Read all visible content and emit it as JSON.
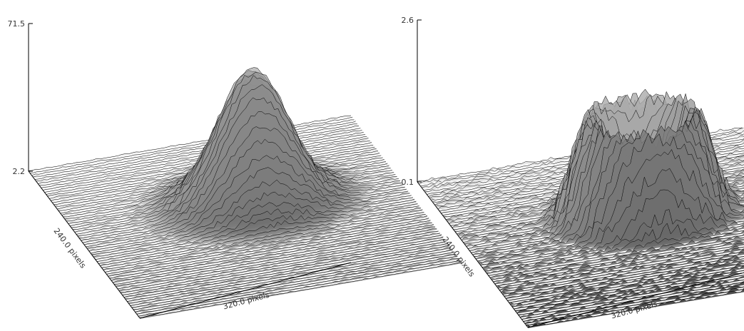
{
  "chart_data": [
    {
      "type": "surface",
      "zlim": [
        2.2,
        71.5
      ],
      "z_top_label": "71.5",
      "z_bottom_label": "2.2",
      "x_axis_label": "320.0 pixels",
      "y_axis_label": "240.0 pixels",
      "shape": "single broad peak",
      "peak_center": [
        0.55,
        0.42
      ],
      "peak_value": 62.0,
      "noise": 3.0
    },
    {
      "type": "surface",
      "zlim": [
        0.1,
        2.6
      ],
      "z_top_label": "2.6",
      "z_bottom_label": "0.1",
      "x_axis_label": "320.0 pixels",
      "y_axis_label": "240.0 pixels",
      "shape": "ring crater with spikes",
      "peak_center": [
        0.55,
        0.42
      ],
      "peak_value": 2.0,
      "noise": 0.25
    }
  ]
}
